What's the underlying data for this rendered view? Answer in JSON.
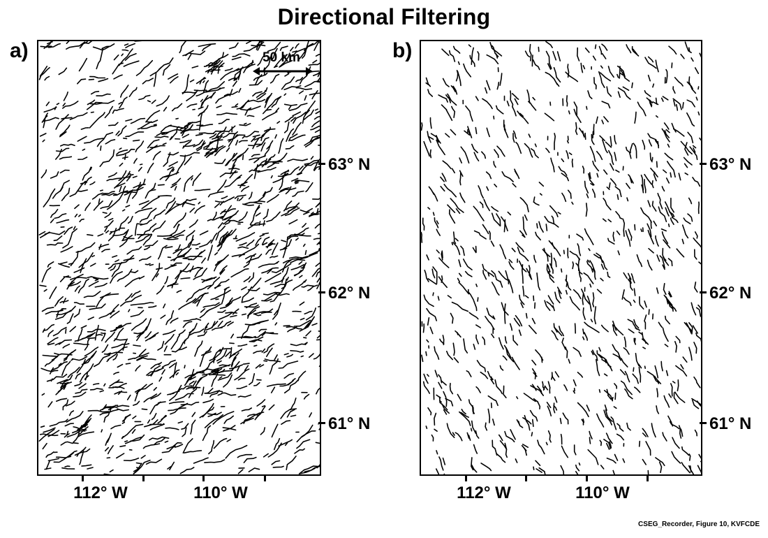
{
  "title": "Directional Filtering",
  "credit": "CSEG_Recorder, Figure 10, KVFCDE",
  "scale_bar_label": "50 km",
  "panels": [
    {
      "label": "a)",
      "lat_labels": [
        "63° N",
        "62° N",
        "61° N"
      ],
      "lon_labels": [
        "112° W",
        "110° W"
      ],
      "lineament_trend": "NE-SW",
      "stroke_color": "#000000"
    },
    {
      "label": "b)",
      "lat_labels": [
        "63° N",
        "62° N",
        "61° N"
      ],
      "lon_labels": [
        "112° W",
        "110° W"
      ],
      "lineament_trend": "NNW-SSE",
      "stroke_color": "#000000"
    }
  ]
}
